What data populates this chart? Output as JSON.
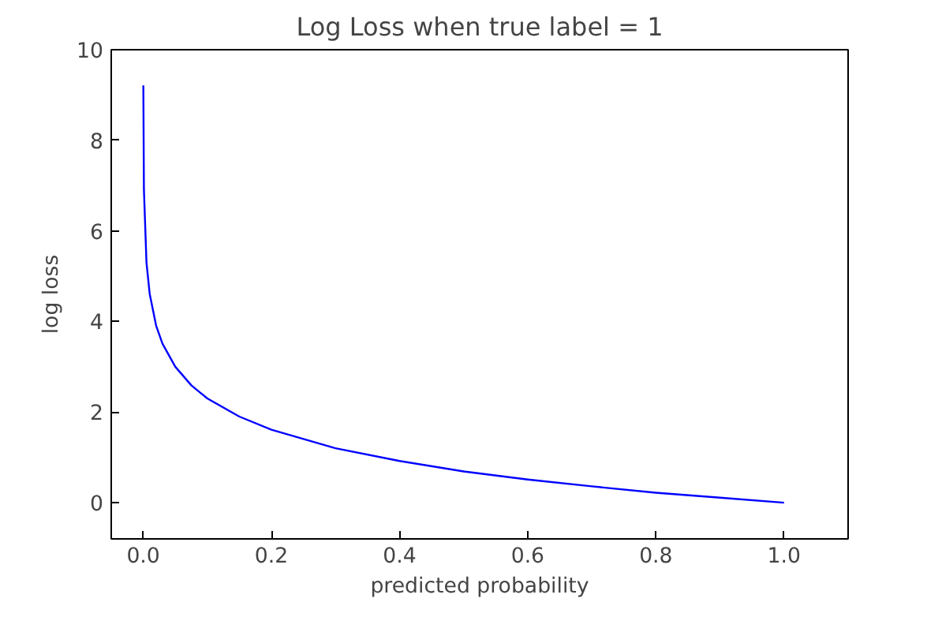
{
  "chart_data": {
    "type": "line",
    "title": "Log Loss when true label = 1",
    "xlabel": "predicted probability",
    "ylabel": "log loss",
    "x": [
      0.0001,
      0.001,
      0.005,
      0.01,
      0.02,
      0.03,
      0.05,
      0.075,
      0.1,
      0.15,
      0.2,
      0.3,
      0.4,
      0.5,
      0.6,
      0.7,
      0.8,
      0.9,
      1.0
    ],
    "series": [
      {
        "color": "#0000ff",
        "values": [
          9.21,
          6.91,
          5.3,
          4.61,
          3.91,
          3.51,
          3.0,
          2.59,
          2.3,
          1.9,
          1.61,
          1.2,
          0.92,
          0.69,
          0.51,
          0.36,
          0.22,
          0.11,
          0.0
        ]
      }
    ],
    "xlim": [
      -0.05,
      1.1
    ],
    "ylim": [
      -0.8,
      10
    ],
    "xticks": [
      {
        "value": 0,
        "label": "0.0"
      },
      {
        "value": 0.2,
        "label": "0.2"
      },
      {
        "value": 0.4,
        "label": "0.4"
      },
      {
        "value": 0.6,
        "label": "0.6"
      },
      {
        "value": 0.8,
        "label": "0.8"
      },
      {
        "value": 1.0,
        "label": "1.0"
      }
    ],
    "yticks": [
      0,
      2,
      4,
      6,
      8,
      10
    ],
    "grid": false,
    "line_style": "solid",
    "marker": "none"
  }
}
